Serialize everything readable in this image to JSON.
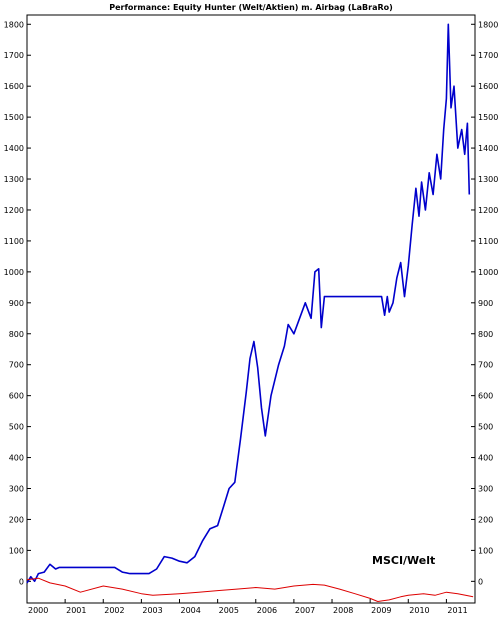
{
  "chart_data": {
    "type": "line",
    "title": "Performance: Equity Hunter (Welt/Aktien) m. Airbag (LaBraRo)",
    "annotation": "MSCI/Welt",
    "xlabel": "",
    "ylabel": "",
    "xlim": [
      2000.0,
      2011.75
    ],
    "ylim": [
      -70,
      1830
    ],
    "grid": false,
    "x_ticks": [
      "2000",
      "2001",
      "2002",
      "2003",
      "2004",
      "2005",
      "2006",
      "2007",
      "2008",
      "2009",
      "2010",
      "2011"
    ],
    "y_ticks": [
      0,
      100,
      200,
      300,
      400,
      500,
      600,
      700,
      800,
      900,
      1000,
      1100,
      1200,
      1300,
      1400,
      1500,
      1600,
      1700,
      1800
    ],
    "series": [
      {
        "color": "#0000cc",
        "x": [
          2000.0,
          2000.1,
          2000.2,
          2000.3,
          2000.45,
          2000.6,
          2000.75,
          2000.85,
          2001.0,
          2001.5,
          2002.0,
          2002.3,
          2002.5,
          2002.7,
          2003.0,
          2003.2,
          2003.4,
          2003.6,
          2003.8,
          2004.0,
          2004.2,
          2004.4,
          2004.6,
          2004.8,
          2005.0,
          2005.15,
          2005.3,
          2005.45,
          2005.6,
          2005.75,
          2005.85,
          2005.95,
          2006.05,
          2006.15,
          2006.25,
          2006.4,
          2006.5,
          2006.6,
          2006.75,
          2006.85,
          2007.0,
          2007.15,
          2007.3,
          2007.45,
          2007.55,
          2007.65,
          2007.72,
          2007.8,
          2008.0,
          2008.5,
          2009.0,
          2009.3,
          2009.38,
          2009.45,
          2009.5,
          2009.6,
          2009.7,
          2009.8,
          2009.9,
          2010.0,
          2010.1,
          2010.2,
          2010.28,
          2010.35,
          2010.45,
          2010.55,
          2010.65,
          2010.75,
          2010.85,
          2010.93,
          2011.0,
          2011.05,
          2011.12,
          2011.2,
          2011.3,
          2011.4,
          2011.48,
          2011.55,
          2011.6
        ],
        "values": [
          -5,
          15,
          0,
          25,
          30,
          55,
          40,
          45,
          45,
          45,
          45,
          45,
          30,
          25,
          25,
          25,
          40,
          80,
          75,
          65,
          60,
          80,
          130,
          170,
          180,
          240,
          300,
          320,
          460,
          610,
          720,
          775,
          690,
          560,
          470,
          600,
          650,
          700,
          760,
          830,
          800,
          850,
          900,
          850,
          1000,
          1010,
          820,
          920,
          920,
          920,
          920,
          920,
          860,
          920,
          870,
          900,
          980,
          1030,
          920,
          1020,
          1150,
          1270,
          1180,
          1290,
          1200,
          1320,
          1250,
          1380,
          1300,
          1460,
          1560,
          1800,
          1530,
          1600,
          1400,
          1460,
          1380,
          1480,
          1250
        ]
      },
      {
        "color": "#dd0000",
        "x": [
          2000.0,
          2000.3,
          2000.6,
          2001.0,
          2001.4,
          2002.0,
          2002.5,
          2003.0,
          2003.3,
          2004.0,
          2004.5,
          2005.0,
          2005.5,
          2006.0,
          2006.5,
          2007.0,
          2007.5,
          2007.8,
          2008.2,
          2008.6,
          2009.0,
          2009.2,
          2009.5,
          2009.8,
          2010.0,
          2010.4,
          2010.7,
          2011.0,
          2011.3,
          2011.5,
          2011.7
        ],
        "values": [
          5,
          10,
          -5,
          -15,
          -35,
          -15,
          -25,
          -40,
          -45,
          -40,
          -35,
          -30,
          -25,
          -20,
          -25,
          -15,
          -10,
          -12,
          -25,
          -40,
          -55,
          -65,
          -60,
          -50,
          -45,
          -40,
          -45,
          -35,
          -40,
          -45,
          -50
        ]
      }
    ]
  }
}
